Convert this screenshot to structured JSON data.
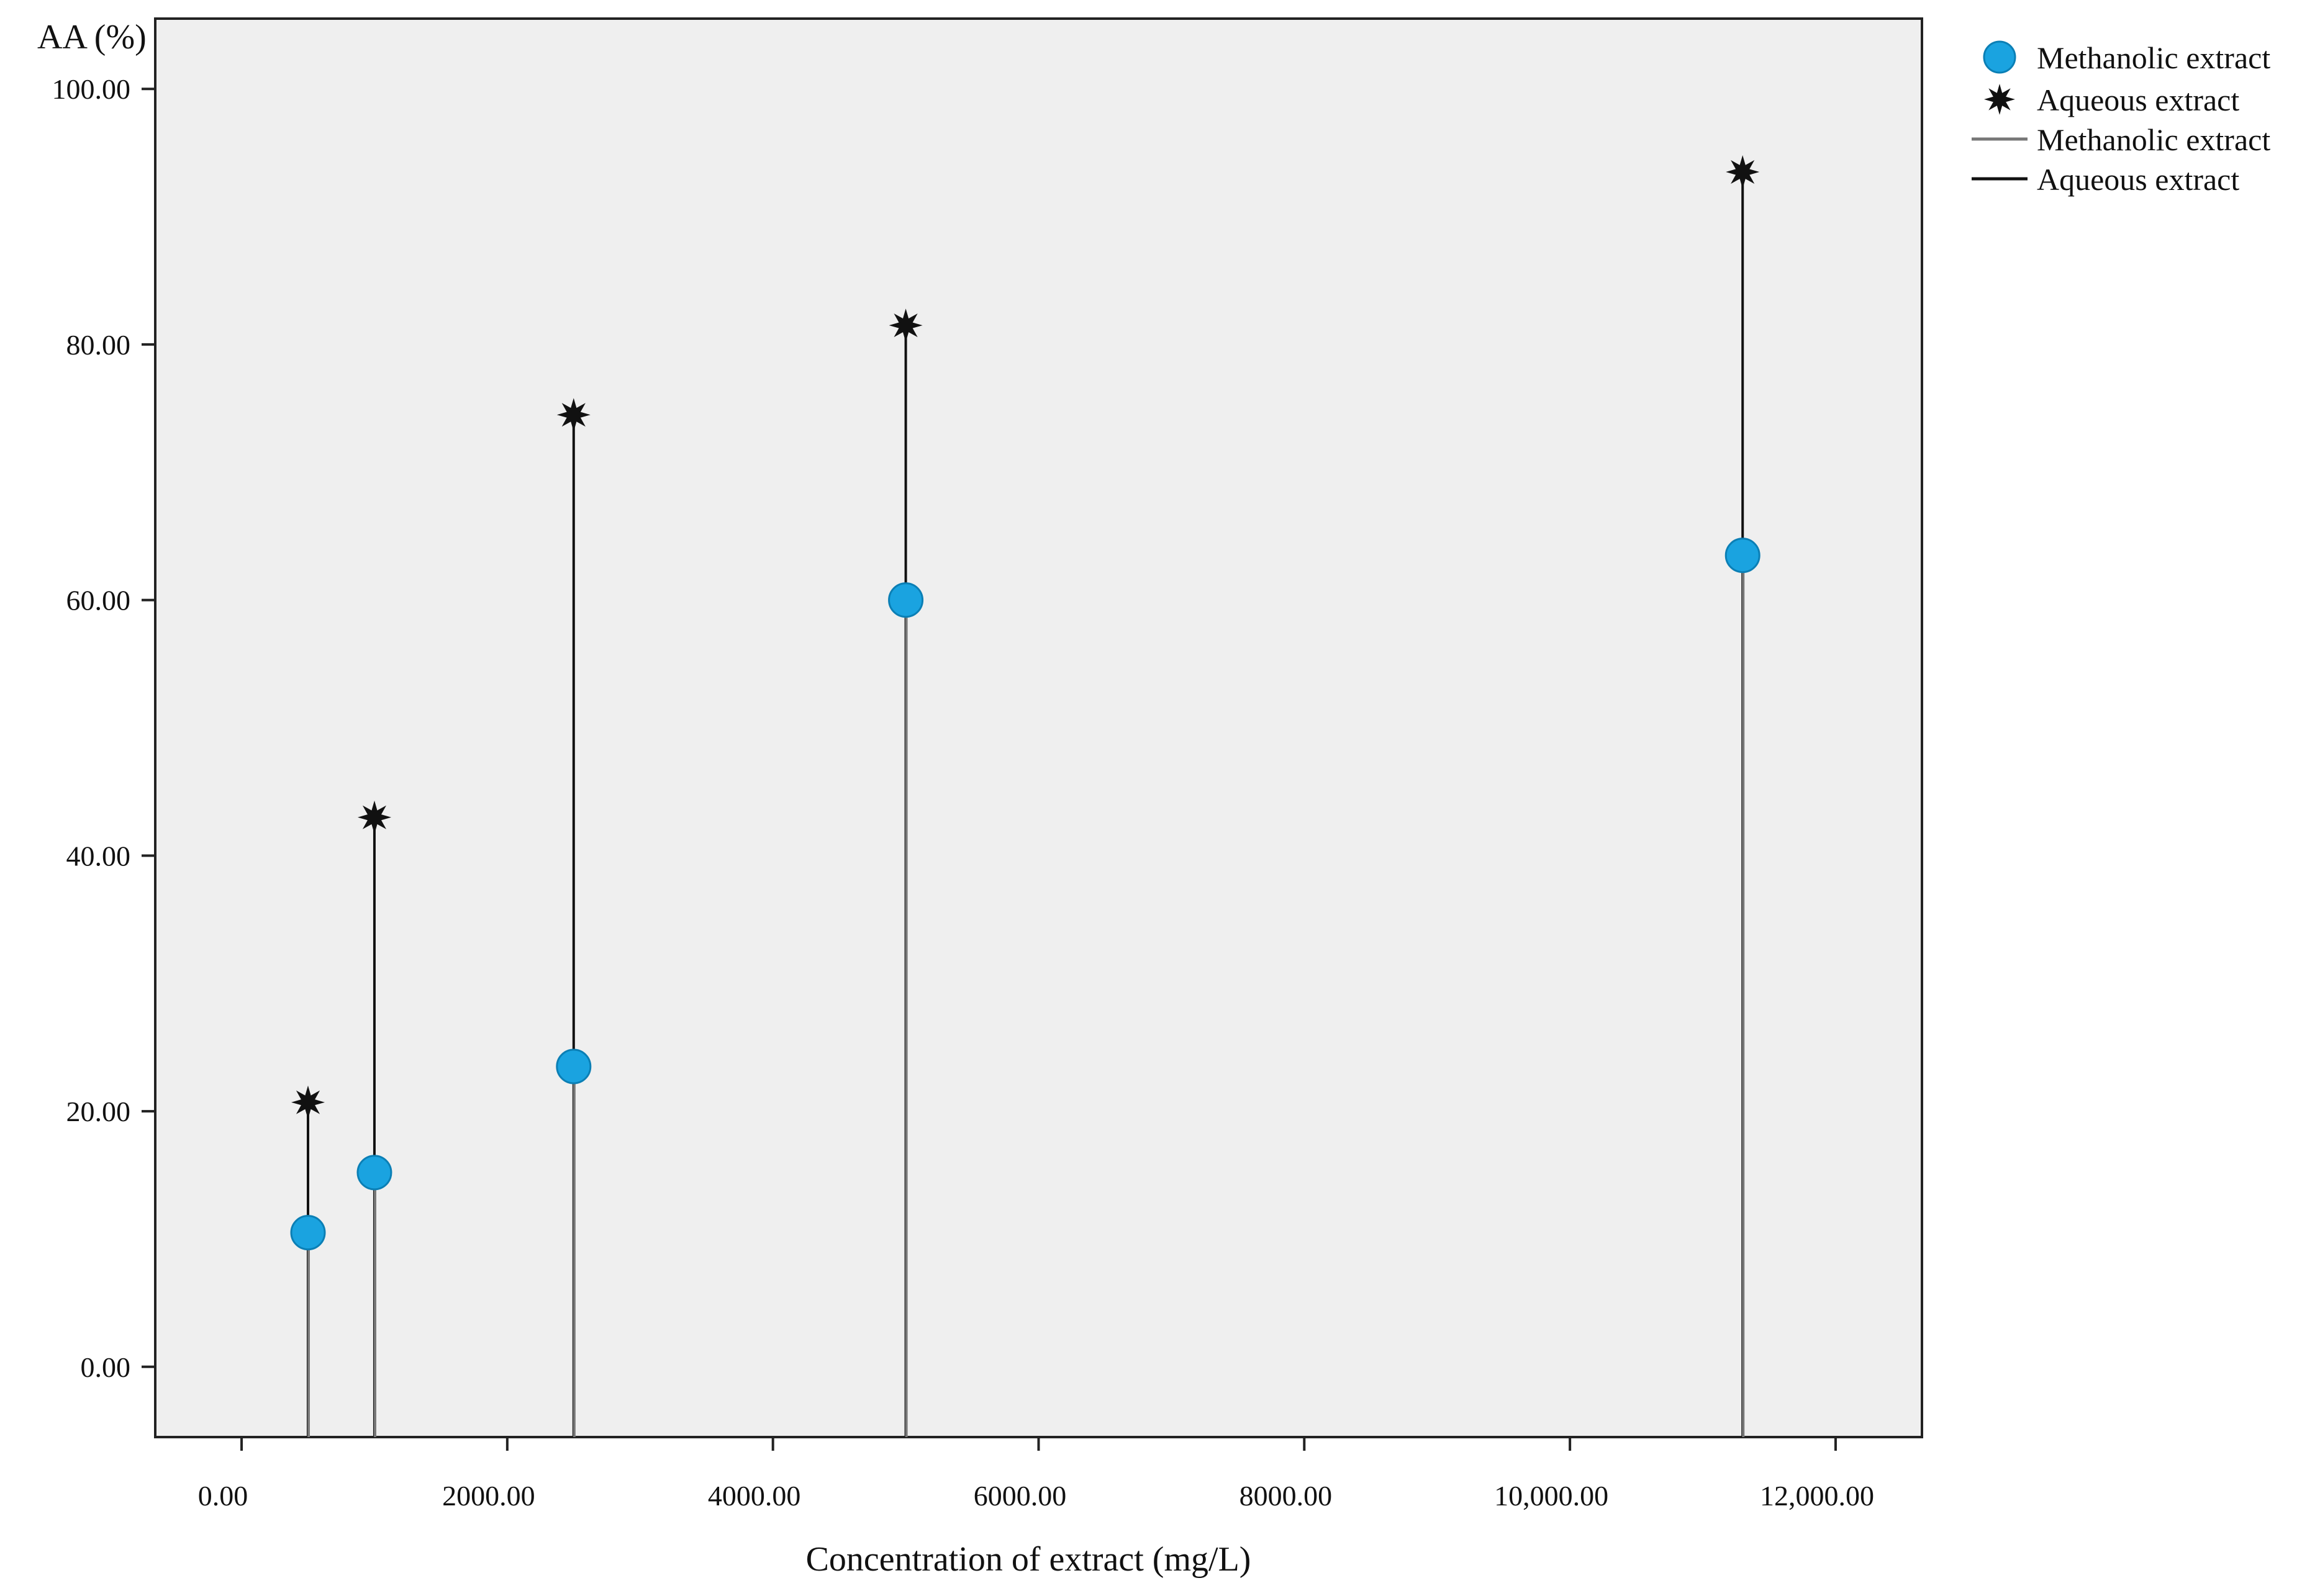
{
  "chart_data": {
    "type": "scatter",
    "ylabel": "AA (%)",
    "xlabel": "Concentration of extract (mg/L)",
    "xlim": [
      -650,
      12650
    ],
    "ylim": [
      -5.5,
      105.5
    ],
    "x_ticks": [
      0,
      2000,
      4000,
      6000,
      8000,
      10000,
      12000
    ],
    "x_tick_labels": [
      "0.00",
      "2000.00",
      "4000.00",
      "6000.00",
      "8000.00",
      "10,000.00",
      "12,000.00"
    ],
    "y_ticks": [
      0,
      20,
      40,
      60,
      80,
      100
    ],
    "y_tick_labels": [
      "0.00",
      "20.00",
      "40.00",
      "60.00",
      "80.00",
      "100.00"
    ],
    "grid": false,
    "legend_position": "outside-top-right",
    "x": [
      500,
      1000,
      2500,
      5000,
      11300
    ],
    "series": [
      {
        "name": "Methanolic extract",
        "marker": "circle",
        "color": "#1aa3e0",
        "values": [
          10.5,
          15.2,
          23.5,
          60.0,
          63.5
        ]
      },
      {
        "name": "Aqueous extract",
        "marker": "star",
        "color": "#111111",
        "values": [
          20.7,
          43.0,
          74.5,
          81.5,
          93.5
        ]
      }
    ],
    "drop_lines": [
      {
        "name": "Methanolic extract",
        "color": "#777777"
      },
      {
        "name": "Aqueous extract",
        "color": "#111111"
      }
    ],
    "plot_background": "#efefef"
  }
}
